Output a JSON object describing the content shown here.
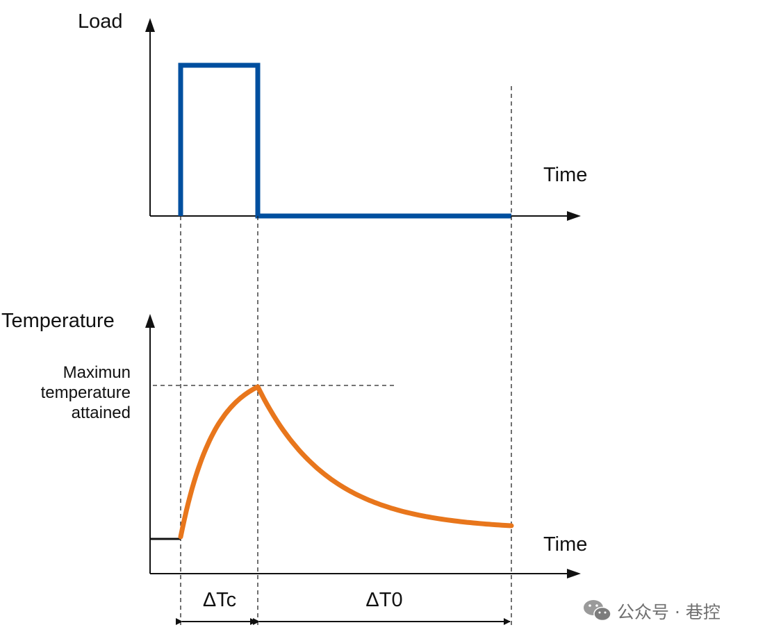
{
  "load_panel": {
    "y_label": "Load",
    "x_label": "Time",
    "curve_color": "#004f9f"
  },
  "temperature_panel": {
    "y_label": "Temperature",
    "x_label": "Time",
    "max_label_lines": [
      "Maximun",
      "temperature",
      "attained"
    ],
    "curve_color": "#e8761c"
  },
  "intervals": {
    "heating_label": "ΔTc",
    "cooling_label": "ΔT0"
  },
  "watermark": {
    "text": "公众号 · 巷控",
    "icon": "wechat-icon"
  }
}
